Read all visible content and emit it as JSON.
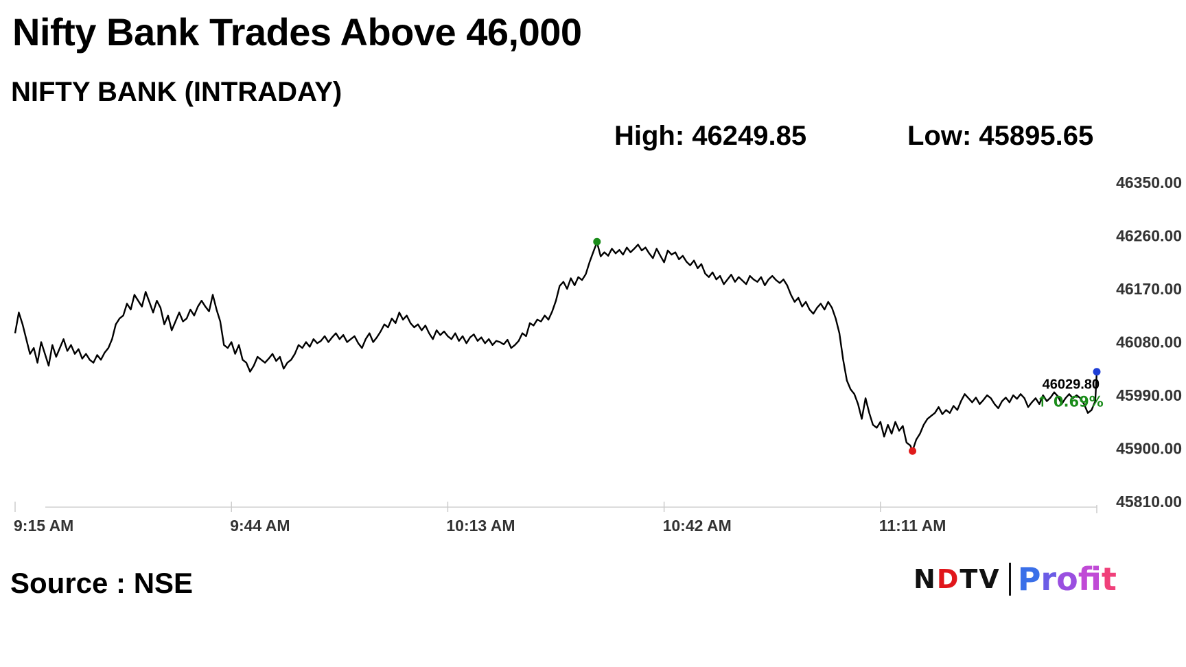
{
  "headline": "Nifty Bank Trades Above 46,000",
  "source": "Source : NSE",
  "logo": {
    "brand": "NDTV",
    "product": "Profit"
  },
  "stats": {
    "high": "High: 46249.85",
    "low": "Low: 45895.65"
  },
  "chart_data": {
    "type": "line",
    "title": "NIFTY BANK (INTRADAY)",
    "x_tick_labels": [
      "9:15 AM",
      "9:44 AM",
      "10:13 AM",
      "10:42 AM",
      "11:11 AM"
    ],
    "x_ticks_minutes": [
      0,
      29,
      58,
      87,
      116
    ],
    "x_range_minutes": [
      0,
      145
    ],
    "y_ticks": [
      45810,
      45900,
      45990,
      46080,
      46170,
      46260,
      46350
    ],
    "y_tick_labels": [
      "45810.00",
      "45900.00",
      "45990.00",
      "46080.00",
      "46170.00",
      "46260.00",
      "46350.00"
    ],
    "ylim": [
      45810,
      46350
    ],
    "grid": false,
    "line_color": "#000000",
    "high_marker": {
      "x": 78,
      "y": 46249.85,
      "color": "#1a8c1a"
    },
    "low_marker": {
      "x": 120.3,
      "y": 45895.65,
      "color": "#e01b1b"
    },
    "last_value_label": "46029.80",
    "change_label": "↑ 0.69%",
    "change_color": "#1a8c1a",
    "last_marker_color": "#1f3fd6",
    "series": [
      {
        "points": [
          [
            0,
            46095
          ],
          [
            0.5,
            46130
          ],
          [
            1,
            46110
          ],
          [
            1.5,
            46085
          ],
          [
            2,
            46060
          ],
          [
            2.5,
            46070
          ],
          [
            3,
            46045
          ],
          [
            3.5,
            46080
          ],
          [
            4,
            46060
          ],
          [
            4.5,
            46040
          ],
          [
            5,
            46075
          ],
          [
            5.5,
            46055
          ],
          [
            6,
            46070
          ],
          [
            6.5,
            46085
          ],
          [
            7,
            46065
          ],
          [
            7.5,
            46075
          ],
          [
            8,
            46060
          ],
          [
            8.5,
            46068
          ],
          [
            9,
            46052
          ],
          [
            9.5,
            46060
          ],
          [
            10,
            46050
          ],
          [
            10.5,
            46045
          ],
          [
            11,
            46058
          ],
          [
            11.5,
            46050
          ],
          [
            12,
            46062
          ],
          [
            12.5,
            46070
          ],
          [
            13,
            46085
          ],
          [
            13.5,
            46110
          ],
          [
            14,
            46120
          ],
          [
            14.5,
            46125
          ],
          [
            15,
            46145
          ],
          [
            15.5,
            46135
          ],
          [
            16,
            46160
          ],
          [
            16.5,
            46150
          ],
          [
            17,
            46140
          ],
          [
            17.5,
            46165
          ],
          [
            18,
            46148
          ],
          [
            18.5,
            46130
          ],
          [
            19,
            46150
          ],
          [
            19.5,
            46138
          ],
          [
            20,
            46110
          ],
          [
            20.5,
            46125
          ],
          [
            21,
            46100
          ],
          [
            21.5,
            46115
          ],
          [
            22,
            46130
          ],
          [
            22.5,
            46115
          ],
          [
            23,
            46120
          ],
          [
            23.5,
            46135
          ],
          [
            24,
            46125
          ],
          [
            24.5,
            46140
          ],
          [
            25,
            46150
          ],
          [
            25.5,
            46140
          ],
          [
            26,
            46132
          ],
          [
            26.5,
            46160
          ],
          [
            27,
            46135
          ],
          [
            27.5,
            46115
          ],
          [
            28,
            46075
          ],
          [
            28.5,
            46070
          ],
          [
            29,
            46080
          ],
          [
            29.5,
            46060
          ],
          [
            30,
            46075
          ],
          [
            30.5,
            46050
          ],
          [
            31,
            46045
          ],
          [
            31.5,
            46030
          ],
          [
            32,
            46040
          ],
          [
            32.5,
            46055
          ],
          [
            33,
            46050
          ],
          [
            33.5,
            46045
          ],
          [
            34,
            46052
          ],
          [
            34.5,
            46060
          ],
          [
            35,
            46048
          ],
          [
            35.5,
            46055
          ],
          [
            36,
            46035
          ],
          [
            36.5,
            46045
          ],
          [
            37,
            46050
          ],
          [
            37.5,
            46060
          ],
          [
            38,
            46075
          ],
          [
            38.5,
            46070
          ],
          [
            39,
            46080
          ],
          [
            39.5,
            46072
          ],
          [
            40,
            46085
          ],
          [
            40.5,
            46078
          ],
          [
            41,
            46082
          ],
          [
            41.5,
            46090
          ],
          [
            42,
            46080
          ],
          [
            42.5,
            46088
          ],
          [
            43,
            46095
          ],
          [
            43.5,
            46085
          ],
          [
            44,
            46092
          ],
          [
            44.5,
            46080
          ],
          [
            45,
            46085
          ],
          [
            45.5,
            46090
          ],
          [
            46,
            46078
          ],
          [
            46.5,
            46070
          ],
          [
            47,
            46085
          ],
          [
            47.5,
            46095
          ],
          [
            48,
            46080
          ],
          [
            48.5,
            46088
          ],
          [
            49,
            46098
          ],
          [
            49.5,
            46110
          ],
          [
            50,
            46105
          ],
          [
            50.5,
            46120
          ],
          [
            51,
            46112
          ],
          [
            51.5,
            46130
          ],
          [
            52,
            46118
          ],
          [
            52.5,
            46125
          ],
          [
            53,
            46112
          ],
          [
            53.5,
            46105
          ],
          [
            54,
            46110
          ],
          [
            54.5,
            46100
          ],
          [
            55,
            46108
          ],
          [
            55.5,
            46095
          ],
          [
            56,
            46085
          ],
          [
            56.5,
            46100
          ],
          [
            57,
            46092
          ],
          [
            57.5,
            46098
          ],
          [
            58,
            46090
          ],
          [
            58.5,
            46085
          ],
          [
            59,
            46095
          ],
          [
            59.5,
            46082
          ],
          [
            60,
            46090
          ],
          [
            60.5,
            46078
          ],
          [
            61,
            46088
          ],
          [
            61.5,
            46093
          ],
          [
            62,
            46082
          ],
          [
            62.5,
            46088
          ],
          [
            63,
            46078
          ],
          [
            63.5,
            46085
          ],
          [
            64,
            46075
          ],
          [
            64.5,
            46082
          ],
          [
            65,
            46080
          ],
          [
            65.5,
            46076
          ],
          [
            66,
            46084
          ],
          [
            66.5,
            46070
          ],
          [
            67,
            46075
          ],
          [
            67.5,
            46082
          ],
          [
            68,
            46095
          ],
          [
            68.5,
            46090
          ],
          [
            69,
            46112
          ],
          [
            69.5,
            46108
          ],
          [
            70,
            46118
          ],
          [
            70.5,
            46115
          ],
          [
            71,
            46125
          ],
          [
            71.5,
            46118
          ],
          [
            72,
            46132
          ],
          [
            72.5,
            46150
          ],
          [
            73,
            46175
          ],
          [
            73.5,
            46182
          ],
          [
            74,
            46170
          ],
          [
            74.5,
            46188
          ],
          [
            75,
            46176
          ],
          [
            75.5,
            46190
          ],
          [
            76,
            46185
          ],
          [
            76.5,
            46195
          ],
          [
            77,
            46215
          ],
          [
            77.5,
            46232
          ],
          [
            78,
            46249
          ],
          [
            78.5,
            46225
          ],
          [
            79,
            46232
          ],
          [
            79.5,
            46226
          ],
          [
            80,
            46238
          ],
          [
            80.5,
            46230
          ],
          [
            81,
            46236
          ],
          [
            81.5,
            46228
          ],
          [
            82,
            46240
          ],
          [
            82.5,
            46232
          ],
          [
            83,
            46238
          ],
          [
            83.5,
            46245
          ],
          [
            84,
            46235
          ],
          [
            84.5,
            46240
          ],
          [
            85,
            46230
          ],
          [
            85.5,
            46222
          ],
          [
            86,
            46238
          ],
          [
            86.5,
            46226
          ],
          [
            87,
            46215
          ],
          [
            87.5,
            46235
          ],
          [
            88,
            46228
          ],
          [
            88.5,
            46232
          ],
          [
            89,
            46220
          ],
          [
            89.5,
            46226
          ],
          [
            90,
            46216
          ],
          [
            90.5,
            46210
          ],
          [
            91,
            46218
          ],
          [
            91.5,
            46205
          ],
          [
            92,
            46212
          ],
          [
            92.5,
            46196
          ],
          [
            93,
            46190
          ],
          [
            93.5,
            46198
          ],
          [
            94,
            46186
          ],
          [
            94.5,
            46192
          ],
          [
            95,
            46178
          ],
          [
            95.5,
            46186
          ],
          [
            96,
            46194
          ],
          [
            96.5,
            46182
          ],
          [
            97,
            46190
          ],
          [
            97.5,
            46184
          ],
          [
            98,
            46178
          ],
          [
            98.5,
            46192
          ],
          [
            99,
            46186
          ],
          [
            99.5,
            46182
          ],
          [
            100,
            46190
          ],
          [
            100.5,
            46176
          ],
          [
            101,
            46186
          ],
          [
            101.5,
            46192
          ],
          [
            102,
            46185
          ],
          [
            102.5,
            46180
          ],
          [
            103,
            46186
          ],
          [
            103.5,
            46176
          ],
          [
            104,
            46160
          ],
          [
            104.5,
            46148
          ],
          [
            105,
            46155
          ],
          [
            105.5,
            46140
          ],
          [
            106,
            46148
          ],
          [
            106.5,
            46135
          ],
          [
            107,
            46128
          ],
          [
            107.5,
            46138
          ],
          [
            108,
            46145
          ],
          [
            108.5,
            46135
          ],
          [
            109,
            46148
          ],
          [
            109.5,
            46138
          ],
          [
            110,
            46120
          ],
          [
            110.5,
            46095
          ],
          [
            111,
            46050
          ],
          [
            111.5,
            46015
          ],
          [
            112,
            46000
          ],
          [
            112.5,
            45992
          ],
          [
            113,
            45975
          ],
          [
            113.5,
            45950
          ],
          [
            114,
            45985
          ],
          [
            114.5,
            45960
          ],
          [
            115,
            45940
          ],
          [
            115.5,
            45935
          ],
          [
            116,
            45945
          ],
          [
            116.5,
            45920
          ],
          [
            117,
            45940
          ],
          [
            117.5,
            45925
          ],
          [
            118,
            45945
          ],
          [
            118.5,
            45930
          ],
          [
            119,
            45938
          ],
          [
            119.5,
            45910
          ],
          [
            120,
            45905
          ],
          [
            120.3,
            45896
          ],
          [
            120.8,
            45915
          ],
          [
            121.3,
            45925
          ],
          [
            121.8,
            45940
          ],
          [
            122.3,
            45950
          ],
          [
            122.8,
            45955
          ],
          [
            123.3,
            45960
          ],
          [
            123.8,
            45970
          ],
          [
            124.3,
            45958
          ],
          [
            124.8,
            45965
          ],
          [
            125.3,
            45960
          ],
          [
            125.8,
            45972
          ],
          [
            126.3,
            45965
          ],
          [
            126.8,
            45980
          ],
          [
            127.3,
            45992
          ],
          [
            127.8,
            45985
          ],
          [
            128.3,
            45978
          ],
          [
            128.8,
            45986
          ],
          [
            129.3,
            45975
          ],
          [
            129.8,
            45982
          ],
          [
            130.3,
            45990
          ],
          [
            130.8,
            45985
          ],
          [
            131.3,
            45975
          ],
          [
            131.8,
            45968
          ],
          [
            132.3,
            45980
          ],
          [
            132.8,
            45986
          ],
          [
            133.3,
            45978
          ],
          [
            133.8,
            45990
          ],
          [
            134.3,
            45984
          ],
          [
            134.8,
            45992
          ],
          [
            135.3,
            45985
          ],
          [
            135.8,
            45970
          ],
          [
            136.3,
            45978
          ],
          [
            136.8,
            45985
          ],
          [
            137.3,
            45975
          ],
          [
            137.8,
            45990
          ],
          [
            138.3,
            45980
          ],
          [
            138.8,
            45986
          ],
          [
            139.3,
            45995
          ],
          [
            139.8,
            45988
          ],
          [
            140.3,
            45975
          ],
          [
            140.8,
            45985
          ],
          [
            141.3,
            45992
          ],
          [
            141.8,
            45985
          ],
          [
            142.3,
            45990
          ],
          [
            142.8,
            45985
          ],
          [
            143.3,
            45975
          ],
          [
            143.8,
            45960
          ],
          [
            144.3,
            45965
          ],
          [
            144.8,
            45980
          ],
          [
            145,
            46029.8
          ]
        ]
      }
    ]
  }
}
